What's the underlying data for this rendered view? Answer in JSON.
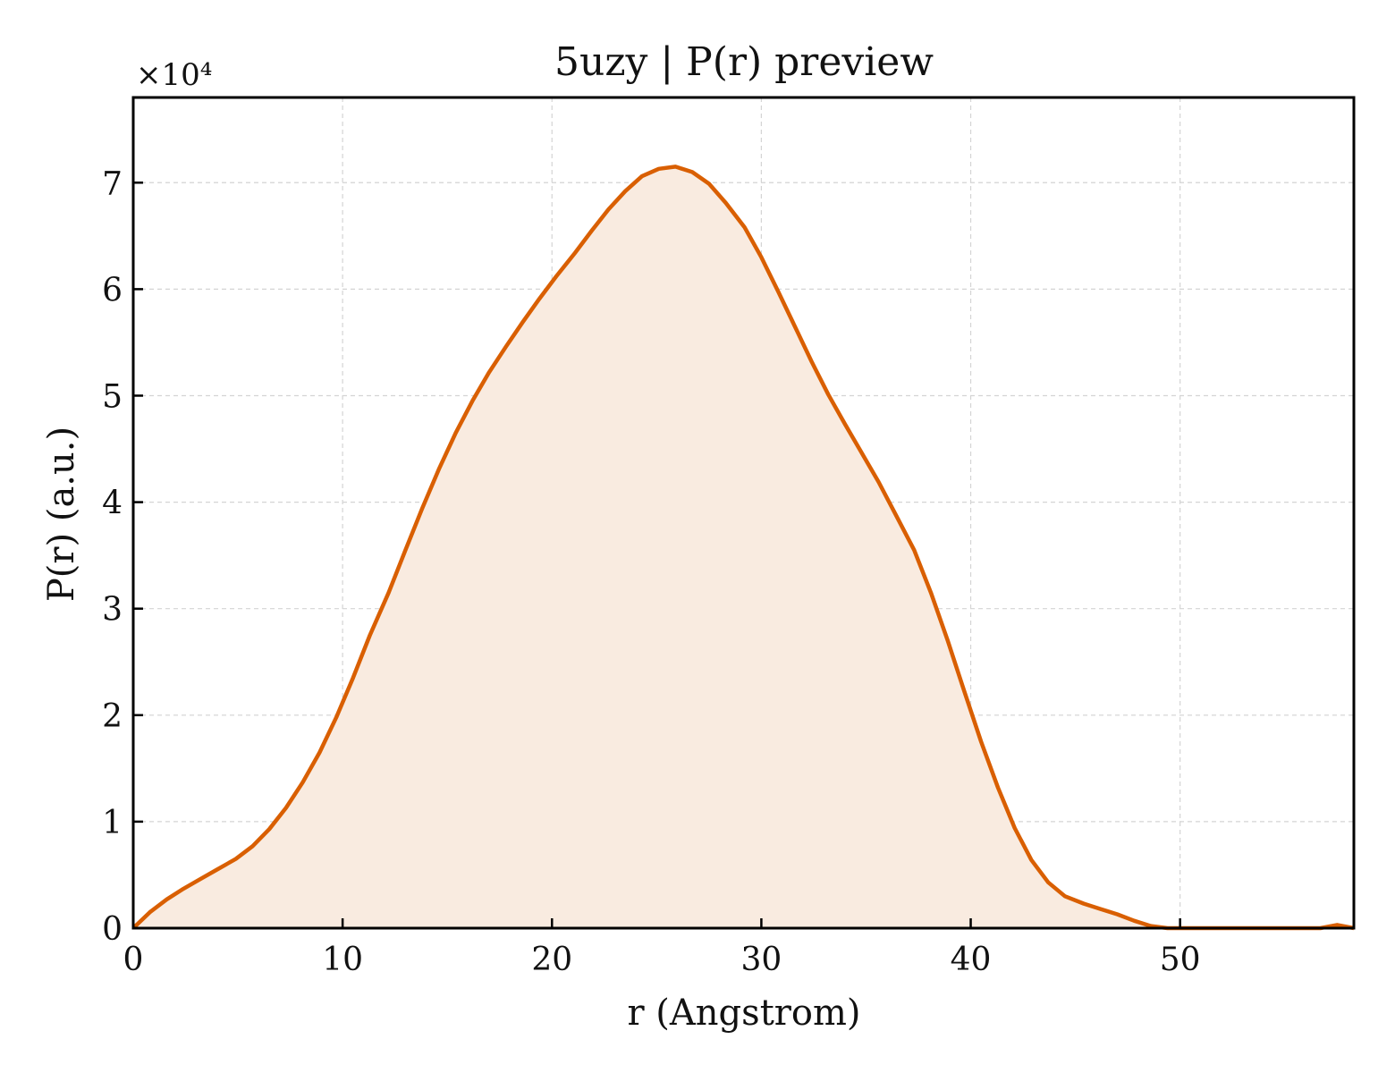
{
  "chart_data": {
    "type": "area",
    "title": "5uzy | P(r) preview",
    "xlabel": "r (Angstrom)",
    "ylabel": "P(r) (a.u.)",
    "y_multiplier_label": "×10⁴",
    "y_scale_factor": 10000,
    "xlim": [
      0,
      58.3
    ],
    "ylim": [
      0,
      7.8
    ],
    "x_ticks": [
      0,
      10,
      20,
      30,
      40,
      50
    ],
    "y_ticks": [
      0,
      1,
      2,
      3,
      4,
      5,
      6,
      7
    ],
    "grid": true,
    "colors": {
      "line": "#d95f02",
      "fill": "#f9ebe0"
    },
    "series": [
      {
        "x": [
          0,
          0.8,
          1.6,
          2.4,
          3.2,
          4.0,
          4.9,
          5.7,
          6.5,
          7.3,
          8.1,
          8.9,
          9.7,
          10.5,
          11.3,
          12.2,
          13.0,
          13.8,
          14.6,
          15.4,
          16.2,
          17.0,
          17.8,
          18.6,
          19.4,
          20.2,
          21.1,
          21.9,
          22.7,
          23.5,
          24.3,
          25.1,
          25.9,
          26.7,
          27.5,
          28.3,
          29.2,
          30.0,
          30.8,
          31.6,
          32.4,
          33.2,
          34.0,
          34.8,
          35.6,
          36.4,
          37.3,
          38.1,
          38.9,
          39.7,
          40.5,
          41.3,
          42.1,
          42.9,
          43.7,
          44.5,
          45.4,
          46.2,
          47.0,
          47.8,
          48.6,
          49.4,
          50.2,
          51.0,
          51.8,
          52.6,
          53.5,
          54.3,
          55.1,
          55.9,
          56.7,
          57.5,
          58.3
        ],
        "y": [
          0.0,
          0.15,
          0.27,
          0.37,
          0.46,
          0.55,
          0.65,
          0.77,
          0.93,
          1.13,
          1.37,
          1.65,
          1.98,
          2.35,
          2.75,
          3.15,
          3.55,
          3.94,
          4.31,
          4.65,
          4.95,
          5.22,
          5.46,
          5.69,
          5.91,
          6.12,
          6.34,
          6.55,
          6.75,
          6.92,
          7.06,
          7.13,
          7.15,
          7.1,
          6.99,
          6.81,
          6.58,
          6.3,
          5.98,
          5.65,
          5.32,
          5.01,
          4.73,
          4.46,
          4.19,
          3.89,
          3.55,
          3.15,
          2.7,
          2.22,
          1.75,
          1.32,
          0.94,
          0.64,
          0.43,
          0.3,
          0.23,
          0.18,
          0.13,
          0.07,
          0.02,
          0.0,
          0.0,
          0.0,
          0.0,
          0.0,
          0.0,
          0.0,
          0.0,
          0.0,
          0.0,
          0.03,
          0.0
        ]
      }
    ]
  }
}
